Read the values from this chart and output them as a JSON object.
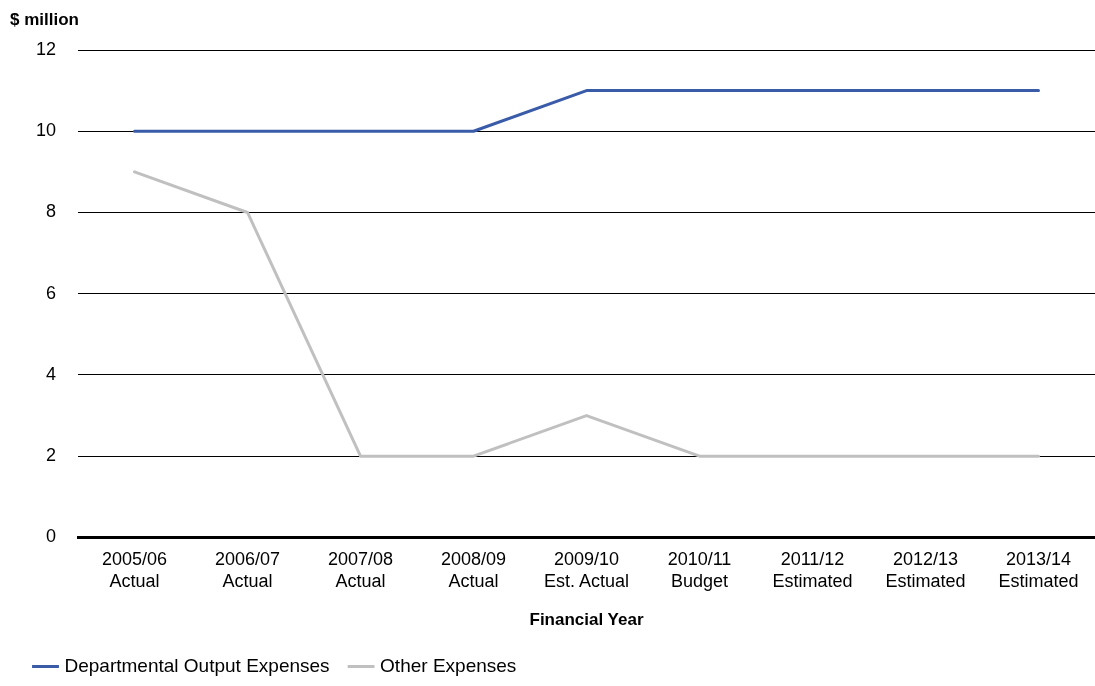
{
  "chart_data": {
    "type": "line",
    "ylabel": "$ million",
    "xlabel": "Financial Year",
    "categories": [
      "2005/06\nActual",
      "2006/07\nActual",
      "2007/08\nActual",
      "2008/09\nActual",
      "2009/10\nEst. Actual",
      "2010/11\nBudget",
      "2011/12\nEstimated",
      "2012/13\nEstimated",
      "2013/14\nEstimated"
    ],
    "series": [
      {
        "name": "Departmental Output Expenses",
        "color": "#3a5ca8",
        "values": [
          10,
          10,
          10,
          10,
          11,
          11,
          11,
          11,
          11
        ]
      },
      {
        "name": "Other Expenses",
        "color": "#c0c0c0",
        "values": [
          9,
          8,
          2,
          2,
          3,
          2,
          2,
          2,
          2
        ]
      }
    ],
    "ylim": [
      0,
      12
    ],
    "yticks": [
      0,
      2,
      4,
      6,
      8,
      10,
      12
    ],
    "grid": "y",
    "legend": "bottom left",
    "marker": "none",
    "line_style": "solid"
  }
}
